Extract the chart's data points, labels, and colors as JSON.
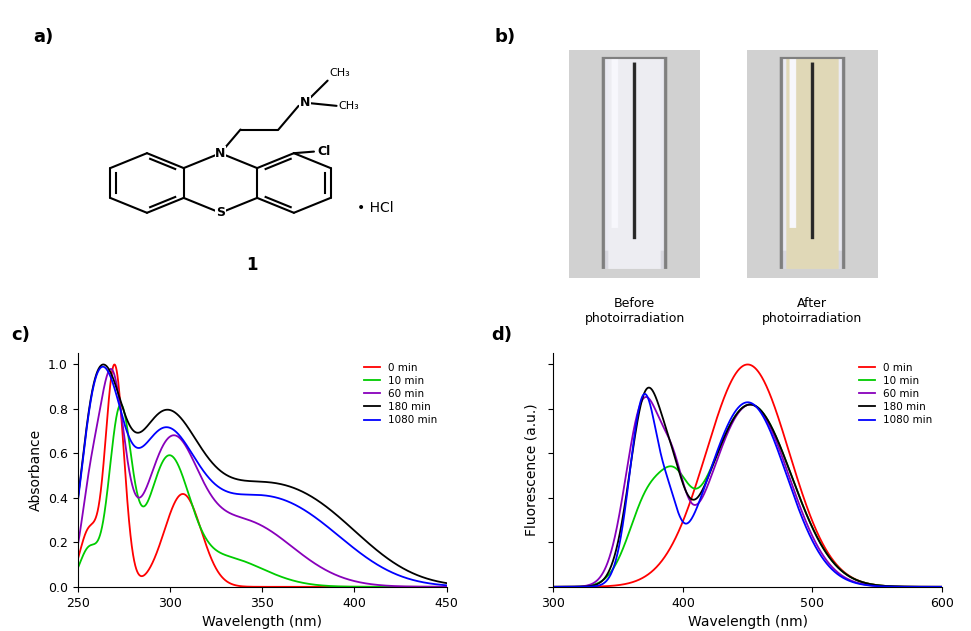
{
  "panel_labels": [
    "a)",
    "b)",
    "c)",
    "d)"
  ],
  "colors": {
    "0min": "#ff0000",
    "10min": "#00cc00",
    "60min": "#8800bb",
    "180min": "#000000",
    "1080min": "#0000ff"
  },
  "legend_labels": [
    "0 min",
    "10 min",
    "60 min",
    "180 min",
    "1080 min"
  ],
  "abs_xlabel": "Wavelength (nm)",
  "abs_ylabel": "Absorbance",
  "abs_xlim": [
    250,
    450
  ],
  "abs_ylim": [
    0,
    1.05
  ],
  "abs_xticks": [
    250,
    300,
    350,
    400,
    450
  ],
  "abs_yticks": [
    0,
    0.2,
    0.4,
    0.6,
    0.8,
    1.0
  ],
  "fl_xlabel": "Wavelength (nm)",
  "fl_ylabel": "Fluorescence (a.u.)",
  "fl_xlim": [
    300,
    600
  ],
  "fl_ylim": [
    0,
    1.05
  ],
  "fl_xticks": [
    300,
    400,
    500,
    600
  ],
  "before_label": "Before\nphotoirradiation",
  "after_label": "After\nphotoirradiation",
  "compound_label": "1",
  "hcl_label": "• HCl",
  "background": "#ffffff",
  "fig_width": 9.71,
  "fig_height": 6.31,
  "fig_dpi": 100
}
